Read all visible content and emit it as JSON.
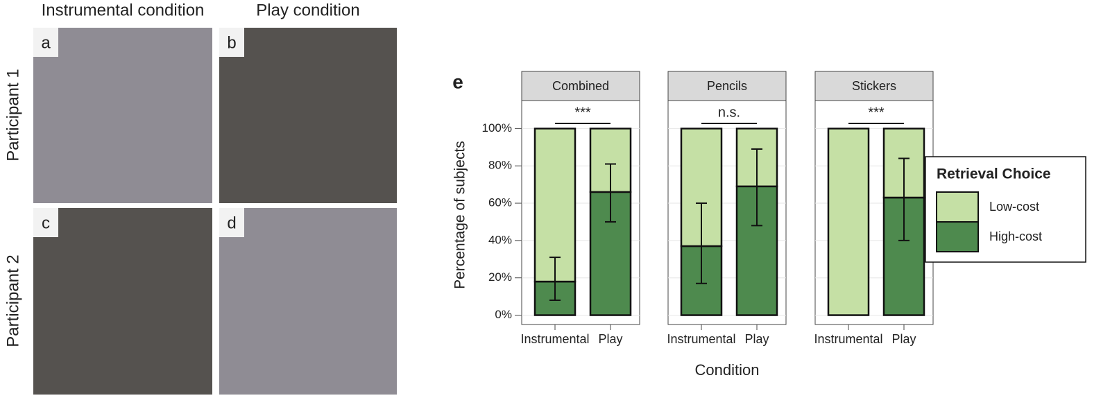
{
  "figure": {
    "column_titles": [
      "Instrumental condition",
      "Play condition"
    ],
    "row_titles": [
      "Participant 1",
      "Participant 2"
    ],
    "photo_labels": [
      "a",
      "b",
      "c",
      "d"
    ]
  },
  "chart_data": {
    "type": "bar",
    "stacked": true,
    "panel_label": "e",
    "ylabel": "Percentage of subjects",
    "xlabel": "Condition",
    "ylim": [
      -5,
      115
    ],
    "yticks": [
      {
        "value": 0,
        "label": "0%"
      },
      {
        "value": 20,
        "label": "20%"
      },
      {
        "value": 40,
        "label": "40%"
      },
      {
        "value": 60,
        "label": "60%"
      },
      {
        "value": 80,
        "label": "80%"
      },
      {
        "value": 100,
        "label": "100%"
      }
    ],
    "grid": true,
    "legend_position": "right",
    "legend_title": "Retrieval Choice",
    "legend": [
      {
        "name": "Low-cost",
        "color": "#c5e0a5"
      },
      {
        "name": "High-cost",
        "color": "#4e8a4e"
      }
    ],
    "facets": [
      {
        "title": "Combined",
        "annotation": "***",
        "categories": [
          "Instrumental",
          "Play"
        ],
        "series": [
          {
            "values": [
              82,
              34
            ]
          },
          {
            "values": [
              18,
              66
            ],
            "ci_lower": [
              8,
              50
            ],
            "ci_upper": [
              31,
              81
            ]
          }
        ]
      },
      {
        "title": "Pencils",
        "annotation": "n.s.",
        "categories": [
          "Instrumental",
          "Play"
        ],
        "series": [
          {
            "values": [
              63,
              31
            ]
          },
          {
            "values": [
              37,
              69
            ],
            "ci_lower": [
              17,
              48
            ],
            "ci_upper": [
              60,
              89
            ]
          }
        ]
      },
      {
        "title": "Stickers",
        "annotation": "***",
        "categories": [
          "Instrumental",
          "Play"
        ],
        "series": [
          {
            "values": [
              100,
              37
            ]
          },
          {
            "values": [
              0,
              63
            ],
            "ci_lower": [
              null,
              40
            ],
            "ci_upper": [
              null,
              84
            ]
          }
        ]
      }
    ]
  }
}
